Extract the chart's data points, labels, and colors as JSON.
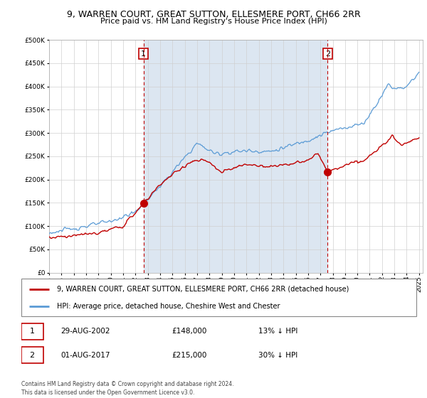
{
  "title": "9, WARREN COURT, GREAT SUTTON, ELLESMERE PORT, CH66 2RR",
  "subtitle": "Price paid vs. HM Land Registry's House Price Index (HPI)",
  "legend_line1": "9, WARREN COURT, GREAT SUTTON, ELLESMERE PORT, CH66 2RR (detached house)",
  "legend_line2": "HPI: Average price, detached house, Cheshire West and Chester",
  "transaction1_date": "29-AUG-2002",
  "transaction1_price": "£148,000",
  "transaction1_hpi": "13% ↓ HPI",
  "transaction2_date": "01-AUG-2017",
  "transaction2_price": "£215,000",
  "transaction2_hpi": "30% ↓ HPI",
  "footer": "Contains HM Land Registry data © Crown copyright and database right 2024.\nThis data is licensed under the Open Government Licence v3.0.",
  "hpi_color": "#5b9bd5",
  "hpi_fill_color": "#dce6f1",
  "property_color": "#c00000",
  "vline_color": "#c00000",
  "background_color": "#ffffff",
  "grid_color": "#d0d0d0",
  "ylim": [
    0,
    500000
  ],
  "yticks": [
    0,
    50000,
    100000,
    150000,
    200000,
    250000,
    300000,
    350000,
    400000,
    450000,
    500000
  ],
  "year_start": 1995,
  "year_end": 2025,
  "transaction1_year": 2002.66,
  "transaction2_year": 2017.58
}
